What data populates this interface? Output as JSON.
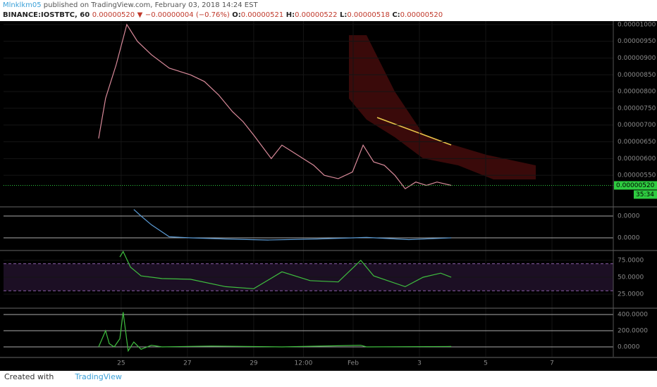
{
  "header": {
    "user": "Mlnklkm05",
    "published": "published on TradingView.com, February 03, 2018 14:24 EST",
    "symbol": "BINANCE:IOSTBTC, 60",
    "last": "0.00000520",
    "arrow": "▼",
    "change": "−0.00000004 (−0.76%)",
    "o_key": "O:",
    "o": "0.00000521",
    "h_key": "H:",
    "h": "0.00000522",
    "l_key": "L:",
    "l": "0.00000518",
    "c_key": "C:",
    "c": "0.00000520"
  },
  "footer": {
    "created": "Created with",
    "brand": "TradingView"
  },
  "chart_data": [
    {
      "type": "line",
      "color": "#d98a9a",
      "x": [
        24.32,
        24.53,
        24.85,
        25.17,
        25.49,
        25.91,
        26.45,
        27.09,
        27.51,
        27.94,
        28.36,
        28.68,
        29,
        29.53,
        29.85,
        30.17,
        30.49,
        30.81,
        31.13,
        31.55,
        31.98,
        32.3,
        32.62,
        32.94,
        33.26,
        33.57,
        33.89,
        34.21,
        34.53,
        34.96
      ],
      "values": [
        6.6e-06,
        7.8e-06,
        8.8e-06,
        1e-05,
        9.5e-06,
        9.1e-06,
        8.7e-06,
        8.5e-06,
        8.3e-06,
        7.9e-06,
        7.4e-06,
        7.1e-06,
        6.7e-06,
        6e-06,
        6.4e-06,
        6.2e-06,
        6e-06,
        5.8e-06,
        5.5e-06,
        5.4e-06,
        5.6e-06,
        6.4e-06,
        5.9e-06,
        5.8e-06,
        5.5e-06,
        5.1e-06,
        5.3e-06,
        5.2e-06,
        5.3e-06,
        5.2e-06
      ],
      "xlim": [
        21.45,
        39.85
      ],
      "xticks": [
        25,
        27,
        29,
        {
          "value": 30.5,
          "label": "12:00"
        },
        {
          "value": 32,
          "label": "Feb"
        },
        {
          "value": 34,
          "label": "3"
        },
        {
          "value": 36,
          "label": "5"
        },
        {
          "value": 38,
          "label": "7"
        }
      ],
      "ylim": [
        4.58e-06,
        1.006e-05
      ],
      "yticks": [
        {
          "value": 1e-05,
          "label": "0.00001000"
        },
        {
          "value": 9.5e-06,
          "label": "0.00000950"
        },
        {
          "value": 9e-06,
          "label": "0.00000900"
        },
        {
          "value": 8.5e-06,
          "label": "0.00000850"
        },
        {
          "value": 8e-06,
          "label": "0.00000800"
        },
        {
          "value": 7.5e-06,
          "label": "0.00000750"
        },
        {
          "value": 7e-06,
          "label": "0.00000700"
        },
        {
          "value": 6.5e-06,
          "label": "0.00000650"
        },
        {
          "value": 6e-06,
          "label": "0.00000600"
        },
        {
          "value": 5.5e-06,
          "label": "0.00000550"
        }
      ],
      "price_label": {
        "value": 5.2e-06,
        "label": "0.00000520"
      },
      "countdown": "35:34"
    },
    {
      "type": "line",
      "color": "#5b9bd5",
      "x": [
        25.38,
        25.6,
        25.91,
        26.45,
        27.09,
        28.15,
        29.43,
        30.91,
        32.4,
        33.68,
        34.96
      ],
      "values": [
        1.3e-07,
        1e-07,
        6e-08,
        5e-09,
        0,
        -5e-09,
        -1e-08,
        -5e-09,
        2e-09,
        -8e-09,
        0
      ],
      "ylim": [
        -5.48e-08,
        1.355e-07
      ],
      "yticks": [
        {
          "value": 1e-07,
          "label": "0.0000"
        },
        {
          "value": 0,
          "label": "0.0000"
        }
      ]
    },
    {
      "type": "line",
      "color": "#3fbf3f",
      "x": [
        24.96,
        25.06,
        25.28,
        25.6,
        26.23,
        27.09,
        28.15,
        29,
        29.85,
        30.7,
        31.55,
        32.23,
        32.62,
        33.57,
        34.11,
        34.64,
        34.96
      ],
      "values": [
        80,
        88,
        65,
        52,
        48,
        47,
        36,
        33,
        58,
        45,
        43,
        75,
        52,
        36,
        50,
        56,
        50
      ],
      "ylim": [
        5.2,
        87.5
      ],
      "band": [
        30,
        70
      ],
      "yticks": [
        {
          "value": 75,
          "label": "75.0000"
        },
        {
          "value": 50,
          "label": "50.0000"
        },
        {
          "value": 25,
          "label": "25.0000"
        }
      ]
    },
    {
      "type": "line",
      "color": "#3fbf3f",
      "x": [
        24.32,
        24.53,
        24.64,
        24.79,
        24.96,
        25.06,
        25.21,
        25.38,
        25.6,
        25.91,
        26.23,
        27.72,
        29.85,
        32.23,
        32.4,
        34.96
      ],
      "values": [
        0,
        200,
        40,
        0,
        100,
        430,
        -50,
        60,
        -30,
        20,
        0,
        10,
        0,
        20,
        0,
        5
      ],
      "ylim": [
        -122,
        461
      ],
      "yticks": [
        {
          "value": 400,
          "label": "400.0000"
        },
        {
          "value": 200,
          "label": "200.0000"
        },
        {
          "value": 0,
          "label": "0.0000"
        }
      ]
    }
  ]
}
